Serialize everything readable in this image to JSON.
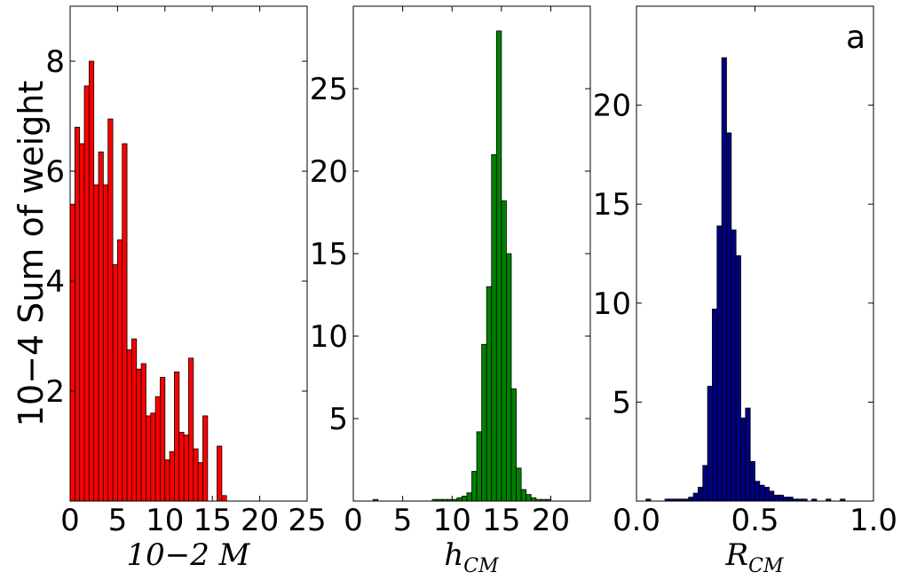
{
  "chart_data": [
    {
      "type": "bar",
      "xlabel": "10−2  M",
      "ylabel": "10−4  Sum of weight",
      "color": "#ff0000",
      "xlim": [
        0,
        25
      ],
      "ylim": [
        0,
        9
      ],
      "xticks": [
        0,
        5,
        10,
        15,
        20,
        25
      ],
      "yticks": [
        2,
        4,
        6,
        8
      ],
      "bin_width": 0.5,
      "bins_start": 0,
      "values": [
        5.4,
        6.8,
        6.5,
        7.55,
        8.0,
        5.75,
        6.35,
        5.75,
        6.95,
        4.3,
        4.75,
        6.5,
        2.75,
        2.95,
        2.4,
        2.5,
        1.55,
        1.6,
        1.9,
        2.25,
        0.75,
        0.9,
        2.35,
        1.25,
        1.2,
        2.6,
        0.95,
        0.7,
        1.55,
        0.0,
        0.0,
        1.0,
        0.1,
        0.0,
        0.0
      ]
    },
    {
      "type": "bar",
      "xlabel": "hCM",
      "ylabel": "",
      "color": "#008000",
      "xlim": [
        0,
        24
      ],
      "ylim": [
        0,
        30
      ],
      "xticks": [
        0,
        5,
        10,
        15,
        20
      ],
      "yticks": [
        5,
        10,
        15,
        20,
        25
      ],
      "bin_width": 0.5,
      "bins_start": 0,
      "values": [
        0,
        0,
        0,
        0,
        0.1,
        0,
        0,
        0,
        0,
        0,
        0,
        0,
        0,
        0,
        0,
        0,
        0.1,
        0.1,
        0.1,
        0.1,
        0.1,
        0.2,
        0.3,
        0.5,
        1.8,
        4.2,
        9.5,
        13.0,
        21.0,
        28.5,
        18.2,
        15.0,
        6.8,
        2.0,
        0.7,
        0.4,
        0.2,
        0.1,
        0.1,
        0.1,
        0,
        0,
        0,
        0,
        0,
        0,
        0,
        0
      ]
    },
    {
      "type": "bar",
      "xlabel": "RCM",
      "ylabel": "",
      "color": "#000080",
      "xlim": [
        0,
        1
      ],
      "ylim": [
        0,
        25
      ],
      "xticks": [
        0.0,
        0.5,
        1.0
      ],
      "yticks": [
        5,
        10,
        15,
        20
      ],
      "bin_width": 0.02,
      "bins_start": 0,
      "annotation": "a",
      "values": [
        0,
        0,
        0.1,
        0,
        0,
        0,
        0.1,
        0.1,
        0.1,
        0.1,
        0.1,
        0.2,
        0.4,
        0.7,
        1.8,
        5.8,
        9.7,
        13.9,
        22.4,
        18.6,
        13.7,
        12.4,
        4.2,
        4.7,
        2.0,
        1.0,
        0.8,
        0.7,
        0.5,
        0.3,
        0.3,
        0.2,
        0.2,
        0.1,
        0.1,
        0.1,
        0,
        0.1,
        0,
        0,
        0.1,
        0,
        0,
        0.1,
        0,
        0,
        0,
        0,
        0,
        0
      ]
    }
  ]
}
